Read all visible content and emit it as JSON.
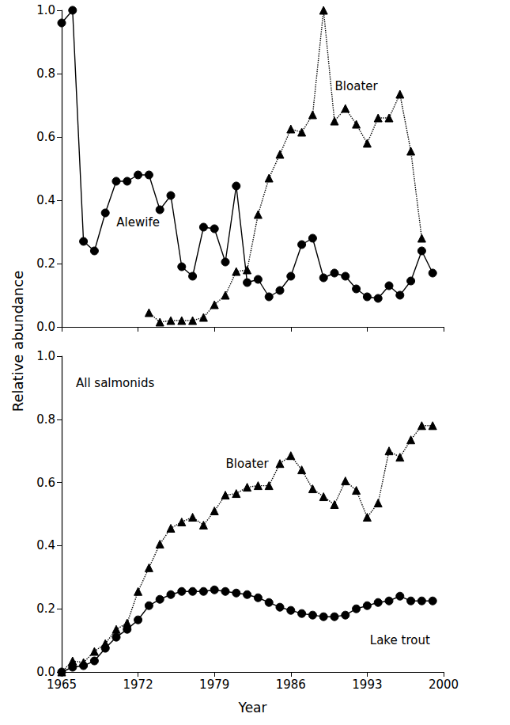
{
  "chart_data": [
    {
      "type": "line",
      "y_label": "Relative abundance",
      "x": [
        1965,
        1966,
        1967,
        1968,
        1969,
        1970,
        1971,
        1972,
        1973,
        1974,
        1975,
        1976,
        1977,
        1978,
        1979,
        1980,
        1981,
        1982,
        1983,
        1984,
        1985,
        1986,
        1987,
        1988,
        1989,
        1990,
        1991,
        1992,
        1993,
        1994,
        1995,
        1996,
        1997,
        1998,
        1999
      ],
      "series": [
        {
          "name": "Alewife",
          "color": "#000000",
          "marker": "circle",
          "line_style": "solid",
          "values": [
            0.96,
            1.0,
            0.27,
            0.24,
            0.36,
            0.46,
            0.46,
            0.48,
            0.48,
            0.37,
            0.415,
            0.19,
            0.16,
            0.315,
            0.31,
            0.205,
            0.445,
            0.14,
            0.15,
            0.095,
            0.115,
            0.16,
            0.26,
            0.28,
            0.155,
            0.17,
            0.16,
            0.12,
            0.095,
            0.09,
            0.13,
            0.1,
            0.145,
            0.24,
            0.17
          ]
        },
        {
          "name": "Bloater",
          "color": "#000000",
          "marker": "triangle",
          "line_style": "dotted",
          "values": [
            null,
            null,
            null,
            null,
            null,
            null,
            null,
            null,
            0.045,
            0.015,
            0.02,
            0.02,
            0.02,
            0.03,
            0.07,
            0.1,
            0.175,
            0.18,
            0.355,
            0.47,
            0.545,
            0.625,
            0.615,
            0.67,
            1.0,
            0.65,
            0.69,
            0.64,
            0.58,
            0.66,
            0.66,
            0.735,
            0.555,
            0.28,
            null
          ]
        }
      ],
      "annotations": [
        {
          "text": "Alewife",
          "x": 1972,
          "y": 0.33
        },
        {
          "text": "Bloater",
          "x": 1992,
          "y": 0.76
        }
      ],
      "xlim": [
        1965,
        2000
      ],
      "xticks": [
        1965,
        1972,
        1979,
        1986,
        1993,
        2000
      ],
      "ylim": [
        0,
        1.0
      ],
      "yticks": [
        {
          "value": 0,
          "label": "0.0"
        },
        {
          "value": 0.2,
          "label": "0.2"
        },
        {
          "value": 0.4,
          "label": "0.4"
        },
        {
          "value": 0.6,
          "label": "0.6"
        },
        {
          "value": 0.8,
          "label": "0.8"
        },
        {
          "value": 1.0,
          "label": "1.0"
        }
      ],
      "tick_labels": "y",
      "grid": false
    },
    {
      "type": "line",
      "x_label": "Year",
      "x": [
        1965,
        1966,
        1967,
        1968,
        1969,
        1970,
        1971,
        1972,
        1973,
        1974,
        1975,
        1976,
        1977,
        1978,
        1979,
        1980,
        1981,
        1982,
        1983,
        1984,
        1985,
        1986,
        1987,
        1988,
        1989,
        1990,
        1991,
        1992,
        1993,
        1994,
        1995,
        1996,
        1997,
        1998,
        1999
      ],
      "series": [
        {
          "name": "Lake trout",
          "color": "#000000",
          "marker": "circle",
          "line_style": "solid",
          "values": [
            0,
            0.015,
            0.02,
            0.035,
            0.075,
            0.11,
            0.135,
            0.165,
            0.21,
            0.23,
            0.245,
            0.255,
            0.255,
            0.255,
            0.26,
            0.255,
            0.25,
            0.245,
            0.235,
            0.22,
            0.205,
            0.195,
            0.185,
            0.18,
            0.175,
            0.175,
            0.18,
            0.2,
            0.21,
            0.22,
            0.225,
            0.24,
            0.225,
            0.225,
            0.225
          ]
        },
        {
          "name": "Bloater",
          "color": "#000000",
          "marker": "triangle",
          "line_style": "dotted",
          "values": [
            0,
            0.035,
            0.03,
            0.065,
            0.09,
            0.135,
            0.155,
            0.255,
            0.33,
            0.405,
            0.455,
            0.475,
            0.49,
            0.465,
            0.51,
            0.56,
            0.565,
            0.585,
            0.59,
            0.59,
            0.66,
            0.685,
            0.64,
            0.58,
            0.555,
            0.53,
            0.605,
            0.575,
            0.49,
            0.535,
            0.7,
            0.68,
            0.735,
            0.78,
            0.78
          ]
        }
      ],
      "annotations": [
        {
          "text": "All salmonids",
          "x": 1969.9,
          "y": 0.915
        },
        {
          "text": "Bloater",
          "x": 1982,
          "y": 0.66
        },
        {
          "text": "Lake trout",
          "x": 1996,
          "y": 0.1
        }
      ],
      "xlim": [
        1965,
        2000
      ],
      "xticks": [
        1965,
        1972,
        1979,
        1986,
        1993,
        2000
      ],
      "ylim": [
        0,
        1.0
      ],
      "yticks": [
        {
          "value": 0,
          "label": "0.0"
        },
        {
          "value": 0.2,
          "label": "0.2"
        },
        {
          "value": 0.4,
          "label": "0.4"
        },
        {
          "value": 0.6,
          "label": "0.6"
        },
        {
          "value": 0.8,
          "label": "0.8"
        },
        {
          "value": 1.0,
          "label": "1.0"
        }
      ],
      "grid": false
    }
  ]
}
